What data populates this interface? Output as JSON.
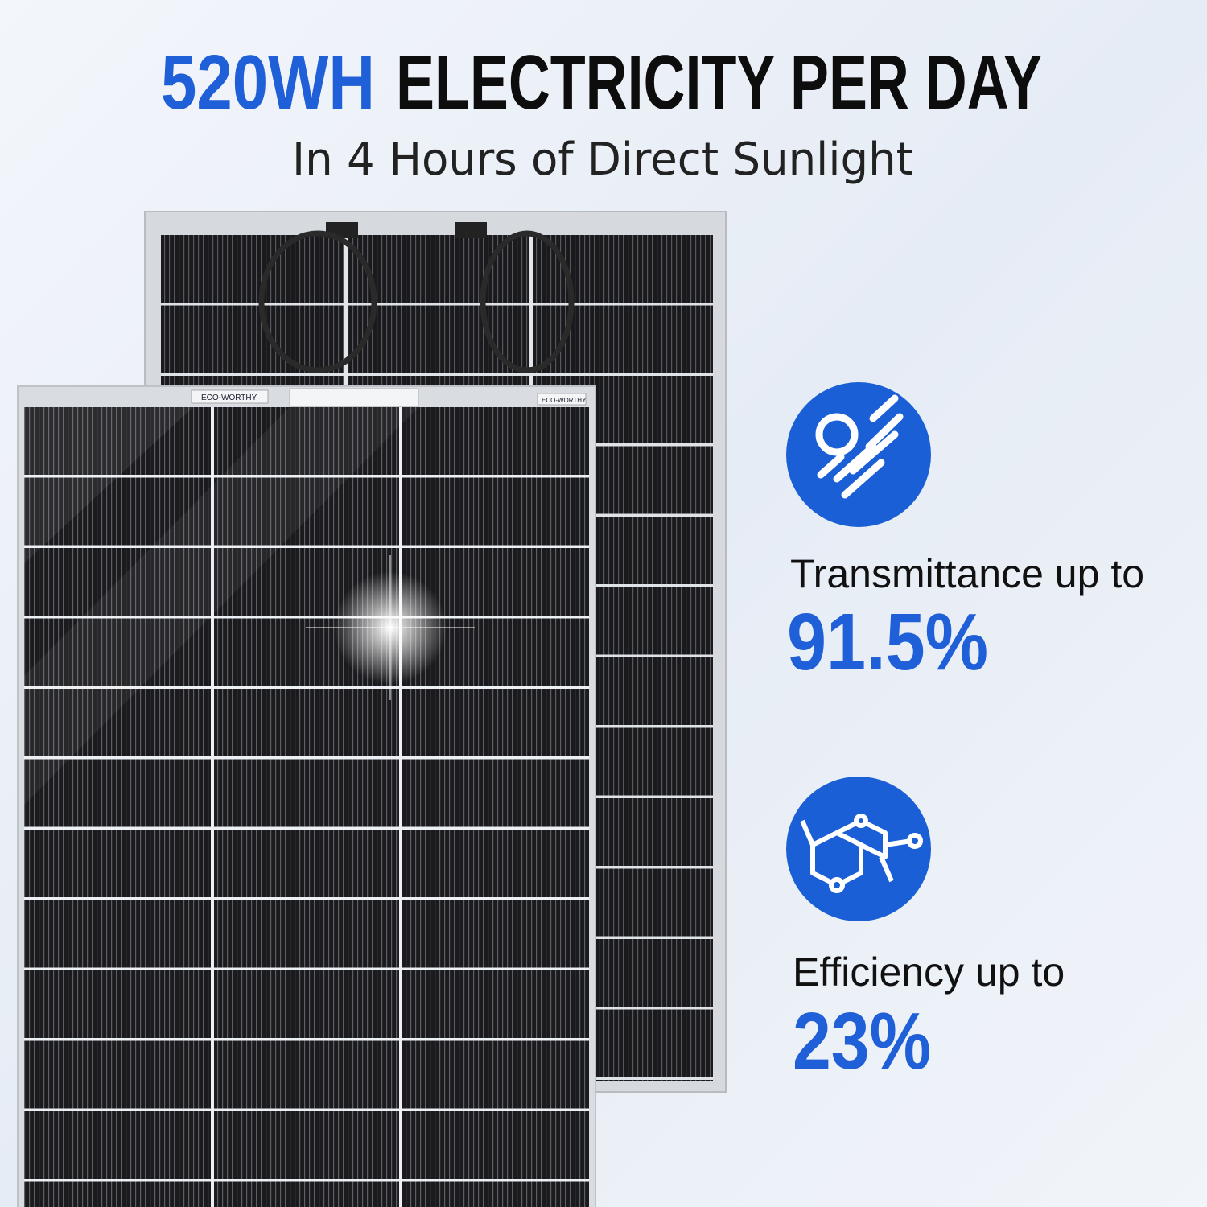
{
  "header": {
    "highlight": "520WH",
    "title": "ELECTRICITY PER DAY",
    "subtitle": "In 4 Hours of Direct Sunlight"
  },
  "features": [
    {
      "label": "Transmittance up to",
      "value": "91.5%"
    },
    {
      "label": "Efficiency up to",
      "value": "23%"
    }
  ],
  "panel": {
    "brand": "ECO-WORTHY"
  }
}
